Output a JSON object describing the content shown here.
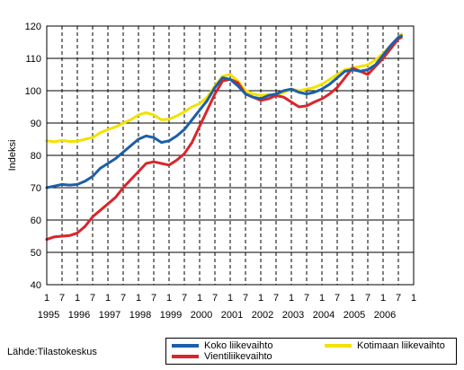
{
  "source": "Lähde:Tilastokeskus",
  "chart_data": {
    "type": "line",
    "title": "",
    "xlabel": "",
    "ylabel": "Indeksi",
    "ylim": [
      40,
      120
    ],
    "yticks": [
      40,
      50,
      60,
      70,
      80,
      90,
      100,
      110,
      120
    ],
    "xlim": [
      1995.0,
      2007.0
    ],
    "month_labels": [
      "1",
      "7"
    ],
    "year_labels": [
      "1995",
      "1996",
      "1997",
      "1998",
      "1999",
      "2000",
      "2001",
      "2002",
      "2003",
      "2004",
      "2005",
      "2006"
    ],
    "grid": "horizontal solid, vertical dashed",
    "legend_position": "bottom-right",
    "series": [
      {
        "name": "Koko liikevaihto",
        "color": "#1c5fa8",
        "points": [
          [
            1995.0,
            70
          ],
          [
            1995.25,
            70.5
          ],
          [
            1995.5,
            71
          ],
          [
            1995.75,
            70.8
          ],
          [
            1996.0,
            71
          ],
          [
            1996.25,
            72
          ],
          [
            1996.5,
            73.5
          ],
          [
            1996.75,
            76
          ],
          [
            1997.0,
            77.5
          ],
          [
            1997.25,
            79
          ],
          [
            1997.5,
            81
          ],
          [
            1997.75,
            83
          ],
          [
            1998.0,
            85
          ],
          [
            1998.25,
            86
          ],
          [
            1998.5,
            85.5
          ],
          [
            1998.75,
            84
          ],
          [
            1999.0,
            84.5
          ],
          [
            1999.25,
            86
          ],
          [
            1999.5,
            88
          ],
          [
            1999.75,
            91
          ],
          [
            2000.0,
            94
          ],
          [
            2000.25,
            97
          ],
          [
            2000.5,
            101
          ],
          [
            2000.75,
            104
          ],
          [
            2001.0,
            103.5
          ],
          [
            2001.25,
            101.5
          ],
          [
            2001.5,
            99
          ],
          [
            2001.75,
            98
          ],
          [
            2002.0,
            97.5
          ],
          [
            2002.25,
            98.5
          ],
          [
            2002.5,
            99
          ],
          [
            2002.75,
            100
          ],
          [
            2003.0,
            100.5
          ],
          [
            2003.25,
            99.5
          ],
          [
            2003.5,
            99
          ],
          [
            2003.75,
            99.5
          ],
          [
            2004.0,
            100.5
          ],
          [
            2004.25,
            102
          ],
          [
            2004.5,
            104
          ],
          [
            2004.75,
            106
          ],
          [
            2005.0,
            106.5
          ],
          [
            2005.25,
            106
          ],
          [
            2005.5,
            106.5
          ],
          [
            2005.75,
            108
          ],
          [
            2006.0,
            111
          ],
          [
            2006.25,
            114
          ],
          [
            2006.5,
            116.5
          ],
          [
            2006.6,
            117
          ]
        ]
      },
      {
        "name": "Kotimaan liikevaihto",
        "color": "#f2e200",
        "points": [
          [
            1995.0,
            84.5
          ],
          [
            1995.25,
            84.2
          ],
          [
            1995.5,
            84.6
          ],
          [
            1995.75,
            84.3
          ],
          [
            1996.0,
            84.4
          ],
          [
            1996.25,
            85
          ],
          [
            1996.5,
            85.5
          ],
          [
            1996.75,
            87
          ],
          [
            1997.0,
            88
          ],
          [
            1997.25,
            88.8
          ],
          [
            1997.5,
            90
          ],
          [
            1997.75,
            91
          ],
          [
            1998.0,
            92.5
          ],
          [
            1998.25,
            93.2
          ],
          [
            1998.5,
            92.5
          ],
          [
            1998.75,
            91
          ],
          [
            1999.0,
            91.2
          ],
          [
            1999.25,
            92.2
          ],
          [
            1999.5,
            93.5
          ],
          [
            1999.75,
            95
          ],
          [
            2000.0,
            96
          ],
          [
            2000.25,
            98
          ],
          [
            2000.5,
            101.5
          ],
          [
            2000.75,
            104.5
          ],
          [
            2001.0,
            105
          ],
          [
            2001.25,
            103
          ],
          [
            2001.5,
            100
          ],
          [
            2001.75,
            99
          ],
          [
            2002.0,
            98.5
          ],
          [
            2002.25,
            98.8
          ],
          [
            2002.5,
            98.5
          ],
          [
            2002.75,
            99.5
          ],
          [
            2003.0,
            100.5
          ],
          [
            2003.25,
            100
          ],
          [
            2003.5,
            100.5
          ],
          [
            2003.75,
            101
          ],
          [
            2004.0,
            102
          ],
          [
            2004.25,
            103.5
          ],
          [
            2004.5,
            105
          ],
          [
            2004.75,
            106.5
          ],
          [
            2005.0,
            107
          ],
          [
            2005.25,
            107.5
          ],
          [
            2005.5,
            108
          ],
          [
            2005.75,
            109.5
          ],
          [
            2006.0,
            111.5
          ],
          [
            2006.25,
            114
          ],
          [
            2006.5,
            116.5
          ],
          [
            2006.6,
            117.5
          ]
        ]
      },
      {
        "name": "Vientiliikevaihto",
        "color": "#d9262b",
        "points": [
          [
            1995.0,
            54
          ],
          [
            1995.25,
            54.8
          ],
          [
            1995.5,
            55
          ],
          [
            1995.75,
            55.2
          ],
          [
            1996.0,
            56
          ],
          [
            1996.25,
            58
          ],
          [
            1996.5,
            61
          ],
          [
            1996.75,
            63
          ],
          [
            1997.0,
            65
          ],
          [
            1997.25,
            67
          ],
          [
            1997.5,
            70
          ],
          [
            1997.75,
            72.5
          ],
          [
            1998.0,
            75
          ],
          [
            1998.25,
            77.5
          ],
          [
            1998.5,
            78
          ],
          [
            1998.75,
            77.5
          ],
          [
            1999.0,
            77
          ],
          [
            1999.25,
            78.5
          ],
          [
            1999.5,
            80.5
          ],
          [
            1999.75,
            84
          ],
          [
            2000.0,
            89
          ],
          [
            2000.25,
            94
          ],
          [
            2000.5,
            99
          ],
          [
            2000.75,
            103
          ],
          [
            2001.0,
            103.5
          ],
          [
            2001.25,
            102.5
          ],
          [
            2001.5,
            99
          ],
          [
            2001.75,
            98
          ],
          [
            2002.0,
            97
          ],
          [
            2002.25,
            97.5
          ],
          [
            2002.5,
            98.5
          ],
          [
            2002.75,
            98
          ],
          [
            2003.0,
            96.5
          ],
          [
            2003.25,
            95
          ],
          [
            2003.5,
            95.3
          ],
          [
            2003.75,
            96.5
          ],
          [
            2004.0,
            97.5
          ],
          [
            2004.25,
            99
          ],
          [
            2004.5,
            101
          ],
          [
            2004.75,
            104
          ],
          [
            2005.0,
            107
          ],
          [
            2005.25,
            106
          ],
          [
            2005.5,
            105
          ],
          [
            2005.75,
            107.5
          ],
          [
            2006.0,
            110
          ],
          [
            2006.25,
            113
          ],
          [
            2006.5,
            116
          ],
          [
            2006.6,
            116.5
          ]
        ]
      }
    ]
  }
}
